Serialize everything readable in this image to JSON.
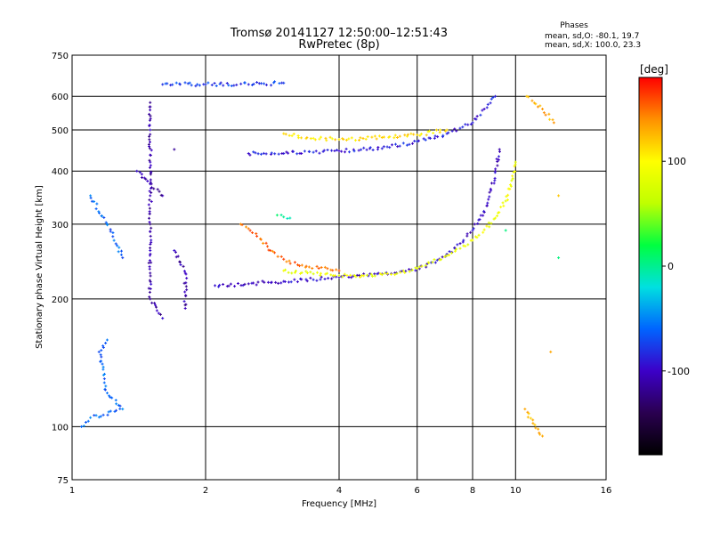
{
  "chart_data": {
    "type": "scatter",
    "title": "Tromsø 20141127 12:50:00–12:51:43",
    "subtitle": "RwPretec (8p)",
    "info_title": "Phases",
    "info_line1": "mean, sd,O: -80.1, 19.7",
    "info_line2": "mean, sd,X: 100.0, 23.3",
    "xlabel": "Frequency [MHz]",
    "ylabel": "Stationary phase Virtual Height [km]",
    "x_scale": "log",
    "y_scale": "log",
    "xlim": [
      1,
      16
    ],
    "ylim": [
      75,
      750
    ],
    "x_ticks": [
      1,
      2,
      4,
      6,
      8,
      10,
      16
    ],
    "x_tick_labels": [
      "1",
      "2",
      "4",
      "6",
      "8",
      "10",
      "16"
    ],
    "y_ticks": [
      75,
      100,
      200,
      300,
      400,
      500,
      600,
      750
    ],
    "y_tick_labels": [
      "75",
      "100",
      "200",
      "300",
      "400",
      "500",
      "600",
      "750"
    ],
    "grid": true,
    "colorbar": {
      "unit": "[deg]",
      "range": [
        -180,
        180
      ],
      "ticks": [
        100,
        0,
        -100
      ],
      "tick_labels": [
        "100",
        "0",
        "-100"
      ],
      "stops": [
        "#000000",
        "#2a0050",
        "#3c00c8",
        "#0064ff",
        "#00e0e0",
        "#00ff40",
        "#c0ff00",
        "#ffff00",
        "#ff9000",
        "#ff0000"
      ]
    },
    "series": [
      {
        "phase": -100,
        "points": [
          [
            2.1,
            215
          ],
          [
            2.5,
            217
          ],
          [
            3.0,
            220
          ],
          [
            3.5,
            222
          ],
          [
            4.0,
            225
          ],
          [
            4.5,
            227
          ],
          [
            5.0,
            229
          ],
          [
            5.5,
            232
          ],
          [
            6.0,
            236
          ],
          [
            6.5,
            244
          ],
          [
            7.0,
            255
          ],
          [
            7.5,
            270
          ],
          [
            8.0,
            290
          ],
          [
            8.5,
            320
          ],
          [
            8.8,
            360
          ],
          [
            9.0,
            400
          ],
          [
            9.2,
            450
          ]
        ]
      },
      {
        "phase": 90,
        "points": [
          [
            3.0,
            233
          ],
          [
            3.5,
            229
          ],
          [
            4.0,
            227
          ],
          [
            4.5,
            227
          ],
          [
            5.0,
            228
          ],
          [
            5.5,
            231
          ],
          [
            6.0,
            236
          ],
          [
            6.5,
            244
          ],
          [
            7.0,
            253
          ],
          [
            7.5,
            263
          ],
          [
            8.0,
            275
          ],
          [
            8.5,
            291
          ],
          [
            9.0,
            310
          ],
          [
            9.5,
            340
          ],
          [
            9.8,
            380
          ],
          [
            10.0,
            420
          ]
        ]
      },
      {
        "phase": 150,
        "points": [
          [
            2.4,
            300
          ],
          [
            2.6,
            285
          ],
          [
            2.8,
            260
          ],
          [
            3.0,
            248
          ],
          [
            3.3,
            240
          ],
          [
            3.6,
            236
          ],
          [
            4.0,
            233
          ]
        ]
      },
      {
        "phase": -90,
        "points": [
          [
            2.5,
            440
          ],
          [
            3.0,
            440
          ],
          [
            3.5,
            443
          ],
          [
            4.0,
            446
          ],
          [
            5.0,
            452
          ],
          [
            6.0,
            470
          ],
          [
            7.0,
            490
          ],
          [
            8.0,
            520
          ],
          [
            8.5,
            560
          ],
          [
            9.0,
            600
          ]
        ]
      },
      {
        "phase": 110,
        "points": [
          [
            3.0,
            490
          ],
          [
            3.5,
            478
          ],
          [
            4.0,
            475
          ],
          [
            5.0,
            480
          ],
          [
            6.0,
            487
          ],
          [
            7.0,
            500
          ]
        ]
      },
      {
        "phase": -75,
        "points": [
          [
            1.6,
            640
          ],
          [
            2.0,
            640
          ],
          [
            2.5,
            640
          ],
          [
            3.0,
            645
          ]
        ]
      },
      {
        "phase": -110,
        "points": [
          [
            1.5,
            580
          ],
          [
            1.5,
            500
          ],
          [
            1.5,
            420
          ],
          [
            1.5,
            350
          ],
          [
            1.5,
            300
          ],
          [
            1.5,
            260
          ],
          [
            1.5,
            230
          ],
          [
            1.5,
            200
          ],
          [
            1.6,
            180
          ],
          [
            1.4,
            400
          ],
          [
            1.6,
            350
          ],
          [
            1.7,
            260
          ],
          [
            1.8,
            230
          ],
          [
            1.8,
            190
          ],
          [
            1.7,
            450
          ]
        ]
      },
      {
        "phase": -60,
        "points": [
          [
            1.1,
            350
          ],
          [
            1.2,
            300
          ],
          [
            1.3,
            250
          ],
          [
            1.2,
            160
          ],
          [
            1.15,
            150
          ],
          [
            1.2,
            120
          ],
          [
            1.3,
            110
          ],
          [
            1.1,
            105
          ],
          [
            1.05,
            100
          ]
        ]
      },
      {
        "phase": 0,
        "points": [
          [
            2.9,
            315
          ],
          [
            3.1,
            310
          ],
          [
            9.5,
            290
          ],
          [
            12.5,
            250
          ]
        ]
      },
      {
        "phase": 130,
        "points": [
          [
            10.6,
            600
          ],
          [
            11.5,
            560
          ],
          [
            12.2,
            520
          ],
          [
            10.5,
            110
          ],
          [
            11.5,
            95
          ],
          [
            12.0,
            150
          ],
          [
            12.5,
            350
          ]
        ]
      }
    ]
  }
}
